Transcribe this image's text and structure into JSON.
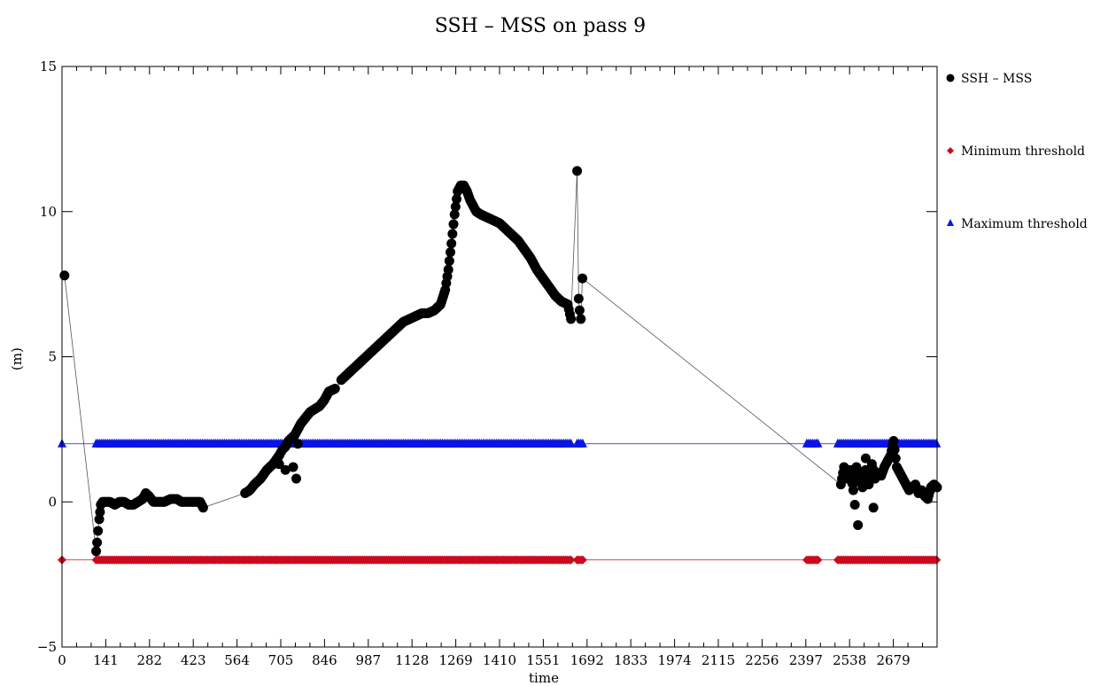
{
  "chart_data": {
    "type": "scatter",
    "title": "SSH – MSS on pass 9",
    "xlabel": "time",
    "ylabel": "(m)",
    "xlim": [
      0,
      2820
    ],
    "ylim": [
      -5,
      15
    ],
    "xticks": [
      "0",
      "141",
      "282",
      "423",
      "564",
      "705",
      "846",
      "987",
      "1128",
      "1269",
      "1410",
      "1551",
      "1692",
      "1833",
      "1974",
      "2115",
      "2256",
      "2397",
      "2538",
      "2679"
    ],
    "xtick_values": [
      0,
      141,
      282,
      423,
      564,
      705,
      846,
      987,
      1128,
      1269,
      1410,
      1551,
      1692,
      1833,
      1974,
      2115,
      2256,
      2397,
      2538,
      2679
    ],
    "yticks": [
      "−5",
      "0",
      "5",
      "10",
      "15"
    ],
    "ytick_values": [
      -5,
      0,
      5,
      10,
      15
    ],
    "legend_position": "right",
    "series": [
      {
        "name": "SSH – MSS",
        "marker": "circle",
        "color": "#000000",
        "x": [
          8,
          110,
          113,
          116,
          120,
          125,
          131,
          140,
          155,
          170,
          185,
          200,
          215,
          230,
          245,
          260,
          270,
          280,
          295,
          310,
          330,
          350,
          370,
          385,
          400,
          415,
          430,
          445,
          455,
          590,
          605,
          620,
          640,
          660,
          680,
          700,
          710,
          720,
          730,
          740,
          750,
          760,
          770,
          785,
          800,
          815,
          830,
          845,
          860,
          880,
          900,
          1010,
          1020,
          1040,
          1060,
          1080,
          1100,
          1120,
          1140,
          1160,
          1180,
          1200,
          1220,
          1235,
          1245,
          1255,
          1265,
          1275,
          1285,
          1295,
          1305,
          1315,
          1325,
          1335,
          1350,
          1370,
          1390,
          1410,
          1430,
          1450,
          1470,
          1490,
          1510,
          1530,
          1550,
          1570,
          1590,
          1610,
          1630,
          1640,
          1660,
          1665,
          1668,
          1672,
          1677,
          700,
          720,
          745,
          755,
          760,
          2510,
          2520,
          2530,
          2540,
          2550,
          2560,
          2570,
          2580,
          2590,
          2600,
          2610,
          2620,
          2630,
          2640,
          2650,
          2660,
          2670,
          2680,
          2690,
          2700,
          2710,
          2720,
          2730,
          2740,
          2750,
          2760,
          2770,
          2780,
          2790,
          2800,
          2810,
          2820,
          2555,
          2565,
          2590,
          2615
        ],
        "y": [
          7.8,
          -1.7,
          -1.4,
          -1.0,
          -0.6,
          -0.1,
          0.0,
          0.0,
          0.0,
          -0.1,
          0.0,
          0.0,
          -0.1,
          -0.1,
          0.0,
          0.1,
          0.3,
          0.2,
          0.0,
          0.0,
          0.0,
          0.1,
          0.1,
          0.0,
          0.0,
          0.0,
          0.0,
          0.0,
          -0.2,
          0.3,
          0.4,
          0.6,
          0.8,
          1.1,
          1.3,
          1.6,
          1.8,
          1.9,
          2.1,
          2.2,
          2.3,
          2.5,
          2.7,
          2.9,
          3.1,
          3.2,
          3.3,
          3.5,
          3.8,
          3.9,
          4.2,
          5.3,
          5.4,
          5.6,
          5.8,
          6.0,
          6.2,
          6.3,
          6.4,
          6.5,
          6.5,
          6.6,
          6.8,
          7.3,
          8.0,
          8.9,
          9.9,
          10.7,
          10.9,
          10.9,
          10.7,
          10.4,
          10.2,
          10.0,
          9.9,
          9.8,
          9.7,
          9.6,
          9.4,
          9.2,
          9.0,
          8.7,
          8.4,
          8.0,
          7.7,
          7.4,
          7.1,
          6.9,
          6.8,
          6.3,
          11.4,
          7.0,
          6.6,
          6.3,
          7.7,
          1.3,
          1.1,
          1.2,
          0.8,
          2.0,
          0.6,
          1.2,
          0.8,
          1.1,
          0.4,
          1.2,
          0.9,
          0.5,
          1.1,
          0.6,
          1.3,
          0.8,
          1.0,
          0.9,
          1.2,
          1.4,
          1.6,
          2.1,
          1.2,
          1.0,
          0.8,
          0.6,
          0.4,
          0.5,
          0.6,
          0.3,
          0.4,
          0.2,
          0.1,
          0.5,
          0.6,
          0.5,
          -0.1,
          -0.8,
          1.5,
          -0.2
        ]
      },
      {
        "name": "Minimum threshold",
        "marker": "diamond",
        "color": "#cc0a1e",
        "constant": -2,
        "segments": [
          [
            0,
            0
          ],
          [
            110,
            1640
          ],
          [
            1660,
            1680
          ],
          [
            2400,
            2440
          ],
          [
            2500,
            2820
          ]
        ]
      },
      {
        "name": "Maximum threshold",
        "marker": "triangle",
        "color": "#0a14e6",
        "constant": 2,
        "segments": [
          [
            0,
            0
          ],
          [
            110,
            1640
          ],
          [
            1660,
            1680
          ],
          [
            2400,
            2440
          ],
          [
            2500,
            2820
          ]
        ]
      }
    ]
  }
}
